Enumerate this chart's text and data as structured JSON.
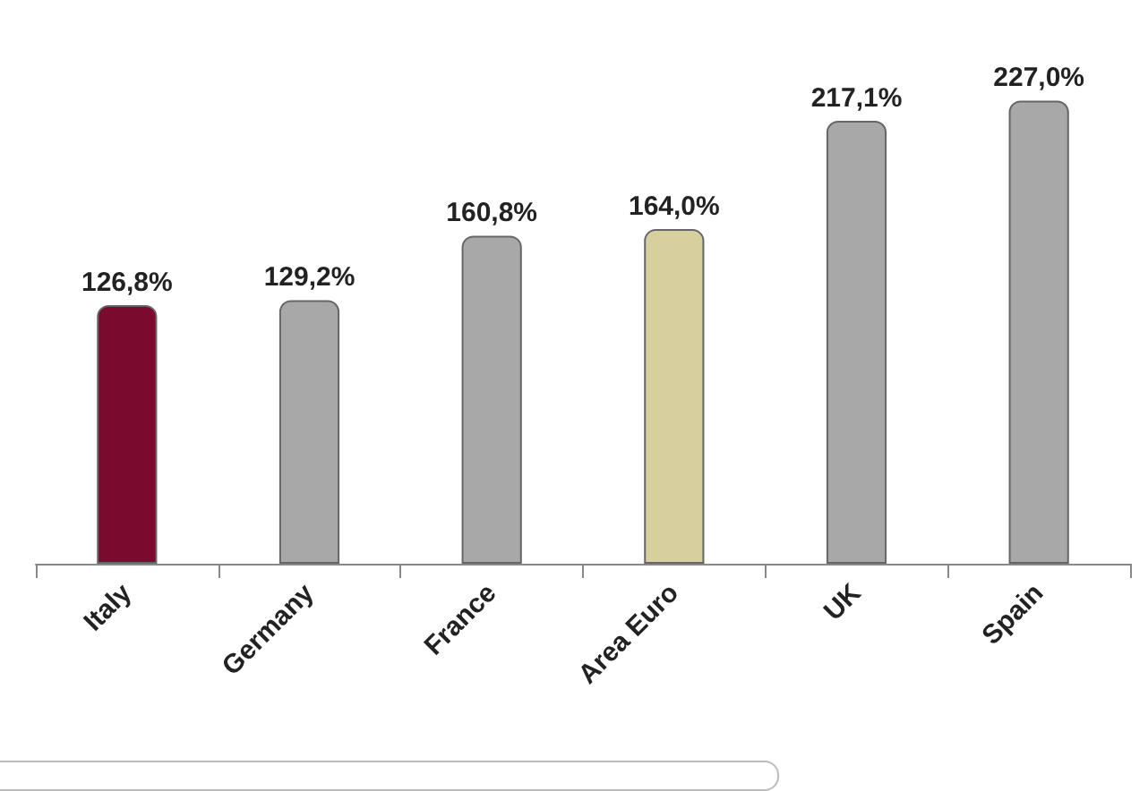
{
  "chart_data": {
    "type": "bar",
    "categories": [
      "Italy",
      "Germany",
      "France",
      "Area Euro",
      "UK",
      "Spain"
    ],
    "values": [
      126.8,
      129.2,
      160.8,
      164.0,
      217.1,
      227.0
    ],
    "colors": [
      "#7b0a2f",
      "#a8a8a8",
      "#a8a8a8",
      "#d8cf9f",
      "#a8a8a8",
      "#a8a8a8"
    ],
    "value_labels": [
      "126,8%",
      "129,2%",
      "160,8%",
      "164,0%",
      "217,1%",
      "227,0%"
    ]
  }
}
